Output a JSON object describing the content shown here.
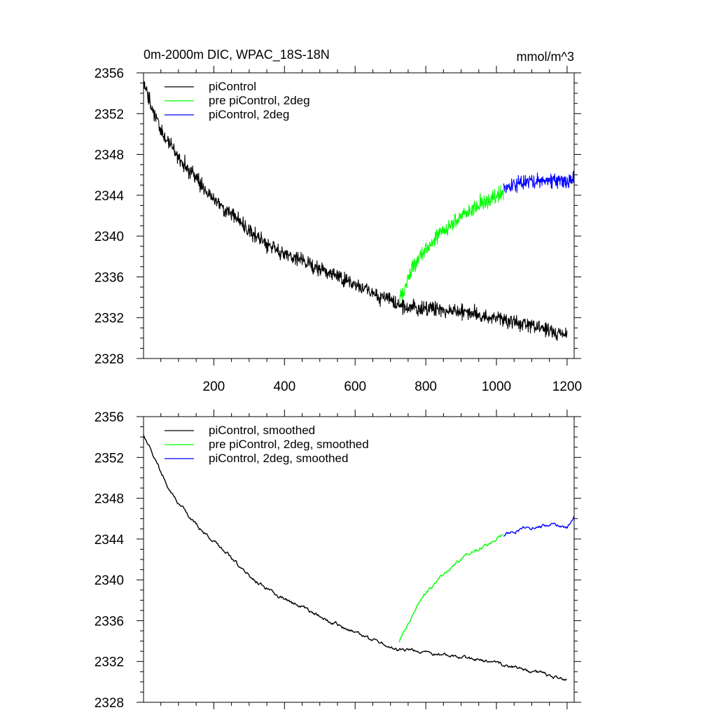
{
  "figure": {
    "title": "0m-2000m DIC, WPAC_18S-18N",
    "units": "mmol/m^3"
  },
  "colors": {
    "piControl": "#000000",
    "pre_piControl_2deg": "#00ff00",
    "piControl_2deg": "#0000ff"
  },
  "chart_data": [
    {
      "type": "line",
      "panel": "top",
      "title": "0m-2000m DIC, WPAC_18S-18N",
      "units": "mmol/m^3",
      "xlim": [
        1,
        1220
      ],
      "ylim": [
        2328,
        2356
      ],
      "xticks": [
        200,
        400,
        600,
        800,
        1000,
        1200
      ],
      "xtick_labels": [
        "200",
        "400",
        "600",
        "800",
        "1000",
        "1200"
      ],
      "yticks": [
        2328,
        2332,
        2336,
        2340,
        2344,
        2348,
        2352,
        2356
      ],
      "ytick_labels": [
        "2328",
        "2332",
        "2336",
        "2340",
        "2344",
        "2348",
        "2352",
        "2356"
      ],
      "legend_position": "top-left",
      "smoothed": false,
      "series": [
        {
          "name": "piControl",
          "color": "#000000",
          "x_start": 1,
          "x_end": 1200,
          "noise": 0.55,
          "anchors": [
            [
              1,
              2355.0
            ],
            [
              25,
              2352.5
            ],
            [
              50,
              2350.2
            ],
            [
              100,
              2347.8
            ],
            [
              150,
              2345.6
            ],
            [
              200,
              2343.6
            ],
            [
              250,
              2342.2
            ],
            [
              300,
              2340.5
            ],
            [
              350,
              2339.2
            ],
            [
              400,
              2338.3
            ],
            [
              450,
              2337.6
            ],
            [
              500,
              2336.7
            ],
            [
              550,
              2336.0
            ],
            [
              600,
              2335.3
            ],
            [
              650,
              2334.4
            ],
            [
              700,
              2333.7
            ],
            [
              720,
              2333.1
            ],
            [
              800,
              2332.9
            ],
            [
              900,
              2332.6
            ],
            [
              1000,
              2331.9
            ],
            [
              1100,
              2331.3
            ],
            [
              1150,
              2330.8
            ],
            [
              1200,
              2330.3
            ]
          ]
        },
        {
          "name": "pre piControl, 2deg",
          "color": "#00ff00",
          "x_start": 725,
          "x_end": 1020,
          "noise": 0.6,
          "anchors": [
            [
              725,
              2334.0
            ],
            [
              740,
              2335.0
            ],
            [
              760,
              2336.6
            ],
            [
              780,
              2337.8
            ],
            [
              800,
              2338.8
            ],
            [
              830,
              2339.8
            ],
            [
              860,
              2340.8
            ],
            [
              900,
              2342.0
            ],
            [
              940,
              2342.9
            ],
            [
              980,
              2343.4
            ],
            [
              1020,
              2344.2
            ]
          ]
        },
        {
          "name": "piControl, 2deg",
          "color": "#0000ff",
          "x_start": 1020,
          "x_end": 1220,
          "noise": 0.55,
          "anchors": [
            [
              1020,
              2344.6
            ],
            [
              1060,
              2345.1
            ],
            [
              1100,
              2345.3
            ],
            [
              1150,
              2345.5
            ],
            [
              1200,
              2345.3
            ],
            [
              1220,
              2345.9
            ]
          ]
        }
      ]
    },
    {
      "type": "line",
      "panel": "bottom",
      "xlim": [
        1,
        1220
      ],
      "ylim": [
        2328,
        2356
      ],
      "xticks": [
        200,
        400,
        600,
        800,
        1000,
        1200
      ],
      "yticks": [
        2328,
        2332,
        2336,
        2340,
        2344,
        2348,
        2352,
        2356
      ],
      "ytick_labels": [
        "2328",
        "2332",
        "2336",
        "2340",
        "2344",
        "2348",
        "2352",
        "2356"
      ],
      "legend_position": "top-left",
      "smoothed": true,
      "series": [
        {
          "name": "piControl, smoothed",
          "color": "#000000",
          "x_start": 1,
          "x_end": 1200,
          "noise": 0.18,
          "anchors": [
            [
              1,
              2354.3
            ],
            [
              25,
              2352.6
            ],
            [
              50,
              2350.5
            ],
            [
              100,
              2347.5
            ],
            [
              150,
              2345.4
            ],
            [
              200,
              2343.7
            ],
            [
              250,
              2342.2
            ],
            [
              300,
              2340.4
            ],
            [
              350,
              2339.1
            ],
            [
              400,
              2338.1
            ],
            [
              450,
              2337.3
            ],
            [
              500,
              2336.4
            ],
            [
              550,
              2335.6
            ],
            [
              600,
              2334.8
            ],
            [
              650,
              2334.1
            ],
            [
              700,
              2333.5
            ],
            [
              720,
              2333.1
            ],
            [
              800,
              2332.9
            ],
            [
              900,
              2332.4
            ],
            [
              1000,
              2331.8
            ],
            [
              1100,
              2331.0
            ],
            [
              1150,
              2330.6
            ],
            [
              1200,
              2330.3
            ]
          ]
        },
        {
          "name": "pre piControl, 2deg, smoothed",
          "color": "#00ff00",
          "x_start": 725,
          "x_end": 1020,
          "noise": 0.18,
          "anchors": [
            [
              725,
              2334.0
            ],
            [
              740,
              2335.0
            ],
            [
              760,
              2336.3
            ],
            [
              780,
              2337.6
            ],
            [
              800,
              2338.7
            ],
            [
              830,
              2339.8
            ],
            [
              860,
              2340.9
            ],
            [
              900,
              2342.1
            ],
            [
              940,
              2342.9
            ],
            [
              980,
              2343.6
            ],
            [
              1020,
              2344.3
            ]
          ]
        },
        {
          "name": "piControl, 2deg, smoothed",
          "color": "#0000ff",
          "x_start": 1020,
          "x_end": 1220,
          "noise": 0.18,
          "anchors": [
            [
              1020,
              2344.4
            ],
            [
              1060,
              2344.9
            ],
            [
              1100,
              2345.1
            ],
            [
              1150,
              2345.4
            ],
            [
              1200,
              2345.1
            ],
            [
              1220,
              2346.1
            ]
          ]
        }
      ]
    }
  ]
}
